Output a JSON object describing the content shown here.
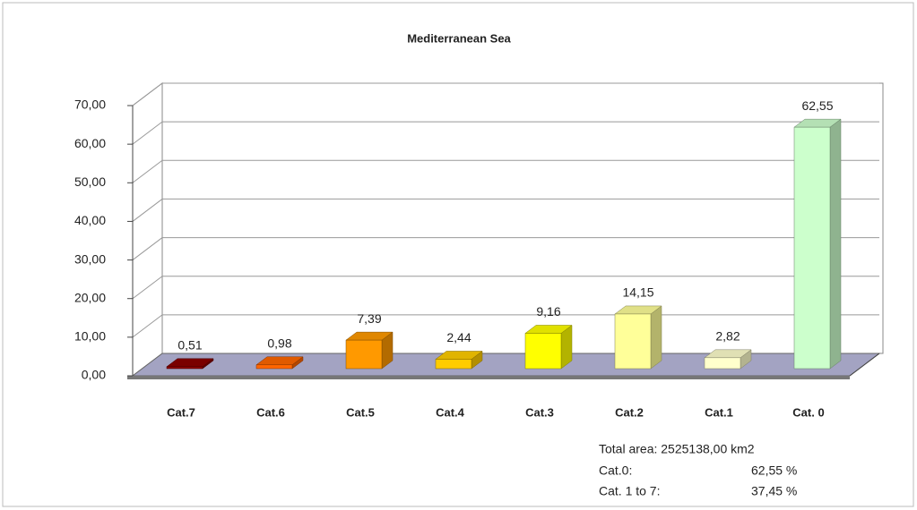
{
  "chart_data": {
    "type": "bar3d",
    "title": "Mediterranean Sea",
    "categories": [
      "Cat.7",
      "Cat.6",
      "Cat.5",
      "Cat.4",
      "Cat.3",
      "Cat.2",
      "Cat.1",
      "Cat. 0"
    ],
    "values": [
      0.51,
      0.98,
      7.39,
      2.44,
      9.16,
      14.15,
      2.82,
      62.55
    ],
    "value_labels": [
      "0,51",
      "0,98",
      "7,39",
      "2,44",
      "9,16",
      "14,15",
      "2,82",
      "62,55"
    ],
    "colors": [
      "#8b0000",
      "#ff6600",
      "#ff9900",
      "#ffcc00",
      "#ffff00",
      "#ffff99",
      "#ffffcc",
      "#ccffcc"
    ],
    "ylim": [
      0,
      70
    ],
    "yticks": [
      {
        "value": 0,
        "label": "0,00"
      },
      {
        "value": 10,
        "label": "10,00"
      },
      {
        "value": 20,
        "label": "20,00"
      },
      {
        "value": 30,
        "label": "30,00"
      },
      {
        "value": 40,
        "label": "40,00"
      },
      {
        "value": 50,
        "label": "50,00"
      },
      {
        "value": 60,
        "label": "60,00"
      },
      {
        "value": 70,
        "label": "70,00"
      }
    ],
    "grid": true,
    "notes": {
      "total": "Total area: 2525138,00 km2",
      "rows": [
        [
          "Cat.0:",
          "62,55 %"
        ],
        [
          "Cat. 1 to 7:",
          "37,45 %"
        ]
      ]
    }
  }
}
